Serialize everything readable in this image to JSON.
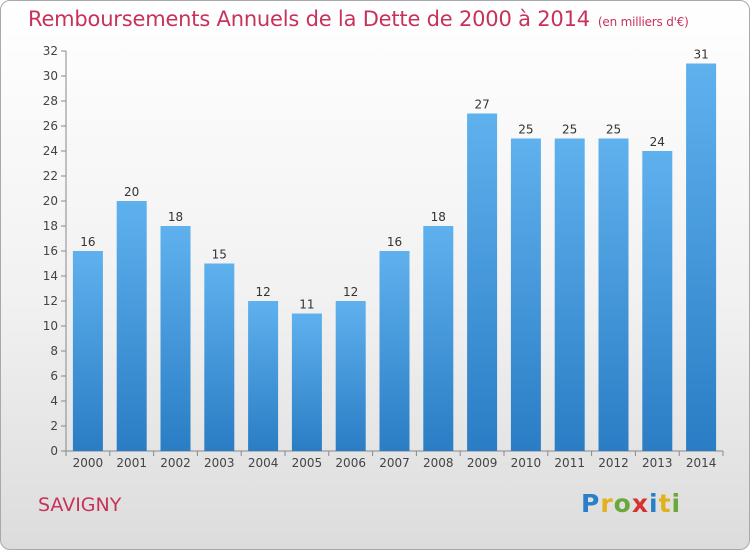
{
  "title": "Remboursements Annuels de la Dette de 2000 à 2014",
  "unit": "(en milliers d'€)",
  "city": "SAVIGNY",
  "logo": {
    "text": "Proxiti",
    "letters": [
      "P",
      "r",
      "o",
      "x",
      "i",
      "t",
      "i"
    ],
    "colors": [
      "#2a7fc9",
      "#e2b21c",
      "#6aa83a",
      "#d6322f",
      "#2a7fc9",
      "#e2b21c",
      "#6aa83a"
    ]
  },
  "chart_data": {
    "type": "bar",
    "title": "Remboursements Annuels de la Dette de 2000 à 2014",
    "categories": [
      "2000",
      "2001",
      "2002",
      "2003",
      "2004",
      "2005",
      "2006",
      "2007",
      "2008",
      "2009",
      "2010",
      "2011",
      "2012",
      "2013",
      "2014"
    ],
    "values": [
      16,
      20,
      18,
      15,
      12,
      11,
      12,
      16,
      18,
      27,
      25,
      25,
      25,
      24,
      31
    ],
    "xlabel": "",
    "ylabel": "",
    "ylim": [
      0,
      32
    ],
    "yticks": [
      0,
      2,
      4,
      6,
      8,
      10,
      12,
      14,
      16,
      18,
      20,
      22,
      24,
      26,
      28,
      30,
      32
    ],
    "grid": false,
    "bar_color": "#3d8fd8"
  }
}
